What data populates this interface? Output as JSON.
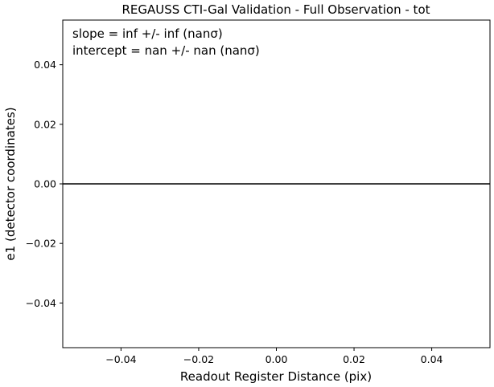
{
  "chart_data": {
    "type": "line",
    "title": "REGAUSS CTI-Gal Validation - Full Observation - tot",
    "xlabel": "Readout Register Distance (pix)",
    "ylabel": "e1 (detector coordinates)",
    "xlim": [
      -0.055,
      0.055
    ],
    "ylim": [
      -0.055,
      0.055
    ],
    "x_ticks": [
      -0.04,
      -0.02,
      0.0,
      0.02,
      0.04
    ],
    "x_tick_labels": [
      "−0.04",
      "−0.02",
      "0.00",
      "0.02",
      "0.04"
    ],
    "y_ticks": [
      -0.04,
      -0.02,
      0.0,
      0.02,
      0.04
    ],
    "y_tick_labels": [
      "−0.04",
      "−0.02",
      "0.00",
      "0.02",
      "0.04"
    ],
    "grid": false,
    "legend": false,
    "annotations": [
      "slope = inf +/- inf (nanσ)",
      "intercept = nan +/- nan (nanσ)"
    ],
    "series": [
      {
        "color": "#000000",
        "x": [
          -0.055,
          0.055
        ],
        "y": [
          0.0,
          0.0
        ]
      }
    ]
  }
}
